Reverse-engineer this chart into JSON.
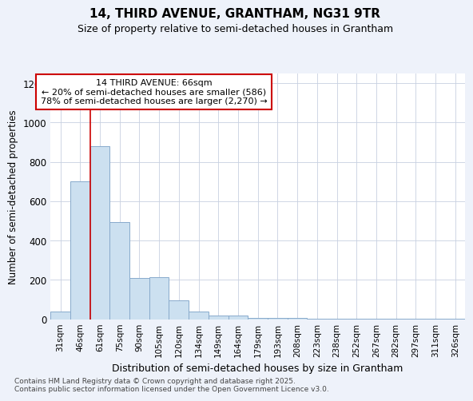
{
  "title1": "14, THIRD AVENUE, GRANTHAM, NG31 9TR",
  "title2": "Size of property relative to semi-detached houses in Grantham",
  "xlabel": "Distribution of semi-detached houses by size in Grantham",
  "ylabel": "Number of semi-detached properties",
  "categories": [
    "31sqm",
    "46sqm",
    "61sqm",
    "75sqm",
    "90sqm",
    "105sqm",
    "120sqm",
    "134sqm",
    "149sqm",
    "164sqm",
    "179sqm",
    "193sqm",
    "208sqm",
    "223sqm",
    "238sqm",
    "252sqm",
    "267sqm",
    "282sqm",
    "297sqm",
    "311sqm",
    "326sqm"
  ],
  "values": [
    40,
    700,
    880,
    495,
    210,
    215,
    95,
    40,
    20,
    20,
    5,
    5,
    5,
    3,
    3,
    3,
    3,
    2,
    2,
    2,
    2
  ],
  "bar_color": "#cce0f0",
  "bar_edge_color": "#88aacc",
  "red_line_x": 2.5,
  "annotation_text": "14 THIRD AVENUE: 66sqm\n← 20% of semi-detached houses are smaller (586)\n78% of semi-detached houses are larger (2,270) →",
  "annotation_box_color": "white",
  "annotation_box_edge_color": "#cc0000",
  "ylim": [
    0,
    1250
  ],
  "yticks": [
    0,
    200,
    400,
    600,
    800,
    1000,
    1200
  ],
  "footnote": "Contains HM Land Registry data © Crown copyright and database right 2025.\nContains public sector information licensed under the Open Government Licence v3.0.",
  "background_color": "#eef2fa",
  "plot_bg_color": "white",
  "grid_color": "#c8d0e0"
}
